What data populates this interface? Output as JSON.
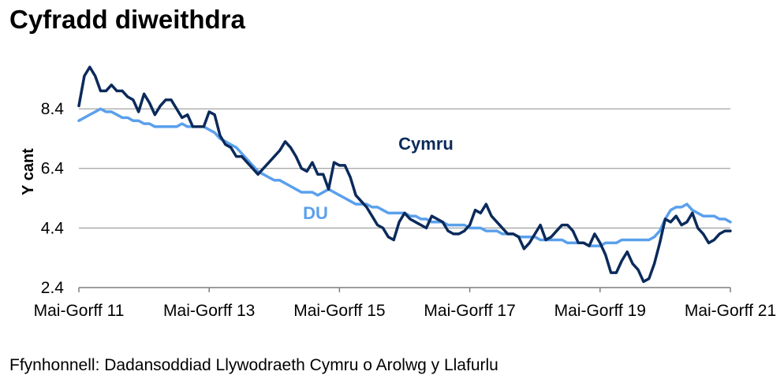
{
  "title": "Cyfradd diweithdra",
  "source": "Ffynhonnell: Dadansoddiad Llywodraeth Cymru o Arolwg y Llafurlu",
  "colors": {
    "cymru": "#0b2a5b",
    "du": "#5aa0ec",
    "grid": "#8c8c8c",
    "axis": "#7f7f7f"
  },
  "chart_data": {
    "type": "line",
    "title": "Cyfradd diweithdra",
    "ylabel": "Y cant",
    "xlabel": "",
    "ylim": [
      2.4,
      10.2
    ],
    "yticks": [
      "2.4",
      "4.4",
      "6.4",
      "8.4"
    ],
    "ytick_values": [
      2.4,
      4.4,
      6.4,
      8.4
    ],
    "grid": true,
    "xlim": [
      0,
      120
    ],
    "xticks": [
      "Mai-Gorff 11",
      "Mai-Gorff 13",
      "Mai-Gorff 15",
      "Mai-Gorff 17",
      "Mai-Gorff 19",
      "Mai-Gorff 21"
    ],
    "xtick_positions": [
      0,
      24,
      48,
      72,
      96,
      120
    ],
    "series": [
      {
        "name": "Cymru",
        "label_position": "above",
        "x": [
          0,
          1,
          2,
          3,
          4,
          5,
          6,
          7,
          8,
          9,
          10,
          11,
          12,
          13,
          14,
          15,
          16,
          17,
          18,
          19,
          20,
          21,
          22,
          23,
          24,
          25,
          26,
          27,
          28,
          29,
          30,
          31,
          32,
          33,
          34,
          35,
          36,
          37,
          38,
          39,
          40,
          41,
          42,
          43,
          44,
          45,
          46,
          47,
          48,
          49,
          50,
          51,
          52,
          53,
          54,
          55,
          56,
          57,
          58,
          59,
          60,
          61,
          62,
          63,
          64,
          65,
          66,
          67,
          68,
          69,
          70,
          71,
          72,
          73,
          74,
          75,
          76,
          77,
          78,
          79,
          80,
          81,
          82,
          83,
          84,
          85,
          86,
          87,
          88,
          89,
          90,
          91,
          92,
          93,
          94,
          95,
          96,
          97,
          98,
          99,
          100,
          101,
          102,
          103,
          104,
          105,
          106,
          107,
          108,
          109,
          110,
          111,
          112,
          113,
          114,
          115,
          116,
          117,
          118,
          119,
          120
        ],
        "values": [
          8.5,
          9.5,
          9.8,
          9.5,
          9.0,
          9.0,
          9.2,
          9.0,
          9.0,
          8.8,
          8.7,
          8.3,
          8.9,
          8.6,
          8.2,
          8.5,
          8.7,
          8.7,
          8.4,
          8.1,
          8.2,
          7.8,
          7.8,
          7.8,
          8.3,
          8.2,
          7.5,
          7.2,
          7.1,
          6.8,
          6.8,
          6.6,
          6.4,
          6.2,
          6.4,
          6.6,
          6.8,
          7.0,
          7.3,
          7.1,
          6.8,
          6.4,
          6.3,
          6.6,
          6.2,
          6.2,
          5.7,
          6.6,
          6.5,
          6.5,
          6.1,
          5.5,
          5.3,
          5.1,
          4.8,
          4.5,
          4.4,
          4.1,
          4.0,
          4.6,
          4.9,
          4.7,
          4.6,
          4.5,
          4.4,
          4.8,
          4.7,
          4.6,
          4.3,
          4.2,
          4.2,
          4.3,
          4.5,
          5.0,
          4.9,
          5.2,
          4.8,
          4.6,
          4.4,
          4.2,
          4.2,
          4.1,
          3.7,
          3.9,
          4.2,
          4.5,
          4.0,
          4.1,
          4.3,
          4.5,
          4.5,
          4.3,
          3.9,
          3.9,
          3.8,
          4.2,
          3.9,
          3.5,
          2.9,
          2.9,
          3.3,
          3.6,
          3.2,
          3.0,
          2.6,
          2.7,
          3.2,
          3.9,
          4.7,
          4.6,
          4.8,
          4.5,
          4.6,
          4.9,
          4.4,
          4.2,
          3.9,
          4.0,
          4.2,
          4.3,
          4.3
        ]
      },
      {
        "name": "DU",
        "label_position": "below",
        "x": [
          0,
          1,
          2,
          3,
          4,
          5,
          6,
          7,
          8,
          9,
          10,
          11,
          12,
          13,
          14,
          15,
          16,
          17,
          18,
          19,
          20,
          21,
          22,
          23,
          24,
          25,
          26,
          27,
          28,
          29,
          30,
          31,
          32,
          33,
          34,
          35,
          36,
          37,
          38,
          39,
          40,
          41,
          42,
          43,
          44,
          45,
          46,
          47,
          48,
          49,
          50,
          51,
          52,
          53,
          54,
          55,
          56,
          57,
          58,
          59,
          60,
          61,
          62,
          63,
          64,
          65,
          66,
          67,
          68,
          69,
          70,
          71,
          72,
          73,
          74,
          75,
          76,
          77,
          78,
          79,
          80,
          81,
          82,
          83,
          84,
          85,
          86,
          87,
          88,
          89,
          90,
          91,
          92,
          93,
          94,
          95,
          96,
          97,
          98,
          99,
          100,
          101,
          102,
          103,
          104,
          105,
          106,
          107,
          108,
          109,
          110,
          111,
          112,
          113,
          114,
          115,
          116,
          117,
          118,
          119,
          120
        ],
        "values": [
          8.0,
          8.1,
          8.2,
          8.3,
          8.4,
          8.3,
          8.3,
          8.2,
          8.1,
          8.1,
          8.0,
          8.0,
          7.9,
          7.9,
          7.8,
          7.8,
          7.8,
          7.8,
          7.8,
          7.9,
          7.8,
          7.8,
          7.8,
          7.8,
          7.7,
          7.6,
          7.4,
          7.3,
          7.2,
          7.1,
          6.9,
          6.7,
          6.5,
          6.3,
          6.2,
          6.1,
          6.0,
          6.0,
          5.9,
          5.8,
          5.7,
          5.6,
          5.6,
          5.6,
          5.5,
          5.6,
          5.7,
          5.6,
          5.5,
          5.4,
          5.3,
          5.2,
          5.2,
          5.2,
          5.1,
          5.1,
          5.0,
          4.9,
          4.9,
          4.9,
          4.9,
          4.8,
          4.8,
          4.7,
          4.7,
          4.6,
          4.6,
          4.6,
          4.5,
          4.5,
          4.5,
          4.5,
          4.4,
          4.4,
          4.4,
          4.3,
          4.3,
          4.3,
          4.2,
          4.2,
          4.2,
          4.1,
          4.1,
          4.1,
          4.1,
          4.0,
          4.0,
          4.0,
          4.0,
          4.0,
          3.9,
          3.9,
          3.9,
          3.9,
          3.8,
          3.8,
          3.8,
          3.9,
          3.9,
          3.9,
          4.0,
          4.0,
          4.0,
          4.0,
          4.0,
          4.0,
          4.1,
          4.3,
          4.7,
          5.0,
          5.1,
          5.1,
          5.2,
          5.0,
          4.9,
          4.8,
          4.8,
          4.8,
          4.7,
          4.7,
          4.6
        ]
      }
    ]
  }
}
